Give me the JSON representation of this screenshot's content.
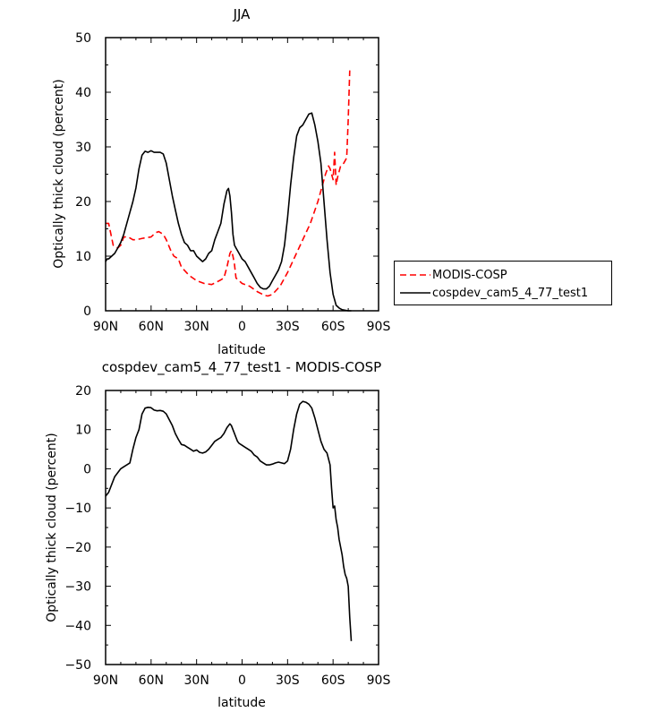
{
  "chart_data": [
    {
      "type": "line",
      "title": "JJA",
      "xlabel": "latitude",
      "ylabel": "Optically thick cloud (percent)",
      "xlim": [
        90,
        -90
      ],
      "ylim": [
        0,
        50
      ],
      "x_ticks": [
        90,
        60,
        30,
        0,
        -30,
        -60,
        -90
      ],
      "x_tick_labels": [
        "90N",
        "60N",
        "30N",
        "0",
        "30S",
        "60S",
        "90S"
      ],
      "y_ticks": [
        0,
        10,
        20,
        30,
        40,
        50
      ],
      "y_tick_labels": [
        "0",
        "10",
        "20",
        "30",
        "40",
        "50"
      ],
      "legend_position": "right",
      "series": [
        {
          "name": "MODIS-COSP",
          "color": "#ff0000",
          "dash": "dashed",
          "x": [
            90,
            88,
            85,
            82,
            80,
            78,
            75,
            72,
            70,
            65,
            60,
            57,
            55,
            52,
            50,
            47,
            45,
            42,
            40,
            35,
            30,
            25,
            20,
            15,
            12,
            10,
            8,
            7,
            6,
            5,
            4,
            2,
            0,
            -5,
            -10,
            -15,
            -17,
            -20,
            -25,
            -30,
            -35,
            -40,
            -45,
            -50,
            -55,
            -57,
            -58,
            -60,
            -61,
            -62,
            -63,
            -65,
            -67,
            -68,
            -69,
            -70,
            -71
          ],
          "y": [
            16,
            16,
            12,
            11.5,
            12,
            13.5,
            13.5,
            13,
            13,
            13.3,
            13.5,
            14.3,
            14.5,
            14,
            13,
            11,
            10,
            9.5,
            8,
            6.5,
            5.5,
            5,
            4.8,
            5.5,
            6,
            8,
            10.5,
            11,
            10,
            8.5,
            6,
            5.5,
            5,
            4.5,
            3.5,
            2.8,
            2.7,
            3,
            4.5,
            7,
            10,
            13,
            16,
            20,
            25,
            26.5,
            26,
            24,
            29,
            23,
            24.5,
            26.5,
            27,
            27.5,
            28,
            35,
            44
          ]
        },
        {
          "name": "cospdev_cam5_4_77_test1",
          "color": "#000000",
          "dash": "solid",
          "x": [
            90,
            89,
            88,
            86,
            84,
            82,
            80,
            78,
            75,
            72,
            70,
            68,
            66,
            64,
            62,
            60,
            58,
            56,
            54,
            52,
            50,
            48,
            46,
            44,
            42,
            40,
            38,
            36,
            34,
            32,
            30,
            28,
            26,
            24,
            22,
            20,
            18,
            16,
            14,
            12,
            10,
            9,
            8,
            7,
            6,
            5,
            4,
            3,
            2,
            0,
            -2,
            -4,
            -6,
            -8,
            -10,
            -12,
            -14,
            -16,
            -18,
            -20,
            -22,
            -24,
            -26,
            -28,
            -30,
            -32,
            -34,
            -36,
            -38,
            -40,
            -42,
            -44,
            -46,
            -48,
            -50,
            -52,
            -54,
            -56,
            -58,
            -60,
            -62,
            -64,
            -66,
            -68,
            -70,
            -72
          ],
          "y": [
            9,
            9.5,
            9.5,
            10,
            10.5,
            11.5,
            12.5,
            14,
            17,
            20,
            22.5,
            26,
            28.5,
            29.2,
            29,
            29.3,
            29,
            29,
            29,
            28.7,
            27,
            24,
            21,
            18.5,
            16,
            14,
            12.5,
            12,
            11,
            11,
            10,
            9.5,
            9,
            9.5,
            10.5,
            11,
            13,
            14.5,
            16,
            19.5,
            22,
            22.4,
            21,
            18,
            14,
            12,
            11.5,
            11,
            10.5,
            9.5,
            9,
            8,
            7,
            6,
            5,
            4.3,
            4,
            4,
            4.5,
            5.5,
            6.5,
            7.5,
            9,
            12,
            17,
            23,
            28,
            32,
            33.5,
            34,
            35,
            36,
            36.2,
            34,
            31,
            27,
            20,
            13,
            7,
            3,
            1,
            0.5,
            0.2,
            0.1,
            0,
            0
          ]
        }
      ]
    },
    {
      "type": "line",
      "title": "cospdev_cam5_4_77_test1 - MODIS-COSP",
      "xlabel": "latitude",
      "ylabel": "Optically thick cloud (percent)",
      "xlim": [
        90,
        -90
      ],
      "ylim": [
        -50,
        20
      ],
      "x_ticks": [
        90,
        60,
        30,
        0,
        -30,
        -60,
        -90
      ],
      "x_tick_labels": [
        "90N",
        "60N",
        "30N",
        "0",
        "30S",
        "60S",
        "90S"
      ],
      "y_ticks": [
        -50,
        -40,
        -30,
        -20,
        -10,
        0,
        10,
        20
      ],
      "y_tick_labels": [
        "−50",
        "−40",
        "−30",
        "−20",
        "−10",
        "0",
        "10",
        "20"
      ],
      "series": [
        {
          "color": "#000000",
          "dash": "solid",
          "x": [
            90,
            88,
            86,
            84,
            82,
            80,
            78,
            76,
            74,
            72,
            70,
            68,
            66,
            64,
            62,
            60,
            58,
            56,
            54,
            52,
            50,
            48,
            46,
            44,
            42,
            40,
            38,
            36,
            34,
            32,
            30,
            28,
            26,
            24,
            22,
            20,
            18,
            16,
            14,
            12,
            10,
            8,
            7,
            6,
            5,
            4,
            3,
            2,
            0,
            -2,
            -4,
            -6,
            -8,
            -10,
            -12,
            -14,
            -16,
            -18,
            -20,
            -22,
            -24,
            -26,
            -28,
            -30,
            -32,
            -34,
            -36,
            -38,
            -40,
            -42,
            -44,
            -46,
            -48,
            -50,
            -52,
            -54,
            -56,
            -58,
            -59,
            -60,
            -61,
            -62,
            -63,
            -64,
            -65,
            -66,
            -67,
            -68,
            -69,
            -70,
            -71,
            -72
          ],
          "y": [
            -7,
            -6,
            -4,
            -2,
            -1,
            0,
            0.5,
            1,
            1.5,
            5,
            8,
            10,
            14,
            15.5,
            15.7,
            15.6,
            15,
            14.8,
            14.9,
            14.7,
            14,
            12.5,
            11,
            9,
            7.5,
            6.2,
            6,
            5.5,
            5,
            4.5,
            4.8,
            4.2,
            4,
            4.3,
            5,
            6,
            7,
            7.5,
            8,
            9,
            10.5,
            11.5,
            11,
            10,
            9,
            8,
            7,
            6.5,
            6,
            5.5,
            5,
            4.5,
            3.5,
            3,
            2,
            1.5,
            1,
            1,
            1.2,
            1.5,
            1.7,
            1.5,
            1.3,
            2,
            5,
            10,
            14,
            16.5,
            17.2,
            17,
            16.5,
            15.5,
            13,
            10,
            7,
            5,
            4,
            1,
            -5,
            -10,
            -9.5,
            -13,
            -15,
            -18,
            -20,
            -22,
            -25,
            -27,
            -28,
            -30,
            -38,
            -44
          ]
        }
      ]
    }
  ]
}
